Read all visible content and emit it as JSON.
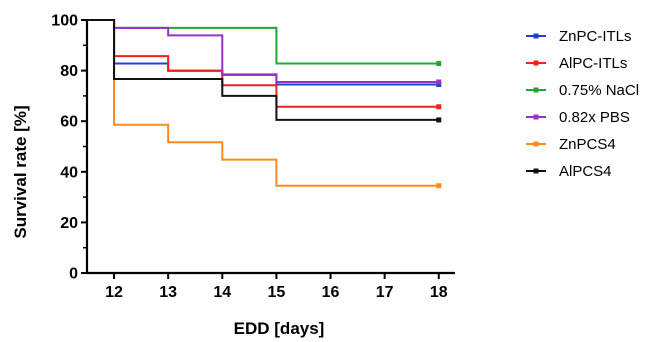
{
  "chart_data": {
    "type": "line",
    "step": true,
    "xlabel": "EDD [days]",
    "ylabel": "Survival rate [%]",
    "xlim": [
      11.5,
      18.3
    ],
    "ylim": [
      0,
      100
    ],
    "x_ticks": [
      "12",
      "13",
      "14",
      "15",
      "16",
      "17",
      "18"
    ],
    "y_ticks": [
      "0",
      "20",
      "40",
      "60",
      "80",
      "100"
    ],
    "grid": false,
    "legend_position": "right",
    "series": [
      {
        "name": "ZnPC-ITLs",
        "color": "#1f3fd8",
        "x": [
          11.5,
          12,
          13,
          14,
          15,
          18
        ],
        "y": [
          100,
          82.8,
          80,
          78.3,
          74.5,
          74.5
        ]
      },
      {
        "name": "AlPC-ITLs",
        "color": "#ee2020",
        "x": [
          11.5,
          12,
          13,
          14,
          15,
          18
        ],
        "y": [
          100,
          85.7,
          79.9,
          74.2,
          65.7,
          65.7
        ]
      },
      {
        "name": "0.75% NaCl",
        "color": "#22a832",
        "x": [
          11.5,
          12,
          13,
          14,
          15,
          18
        ],
        "y": [
          100,
          96.9,
          96.9,
          96.9,
          82.8,
          82.8
        ]
      },
      {
        "name": "0.82x PBS",
        "color": "#9b30c8",
        "x": [
          11.5,
          12,
          13,
          14,
          15,
          18
        ],
        "y": [
          100,
          96.9,
          93.9,
          78.5,
          75.5,
          75.5
        ]
      },
      {
        "name": "ZnPCS4",
        "color": "#ff8a1c",
        "x": [
          11.5,
          12,
          13,
          14,
          15,
          18
        ],
        "y": [
          100,
          58.6,
          51.7,
          44.8,
          34.5,
          34.5
        ]
      },
      {
        "name": "AlPCS4",
        "color": "#111111",
        "x": [
          11.5,
          12,
          13,
          14,
          15,
          18
        ],
        "y": [
          100,
          76.7,
          76.7,
          70.0,
          60.5,
          60.5
        ]
      }
    ]
  }
}
